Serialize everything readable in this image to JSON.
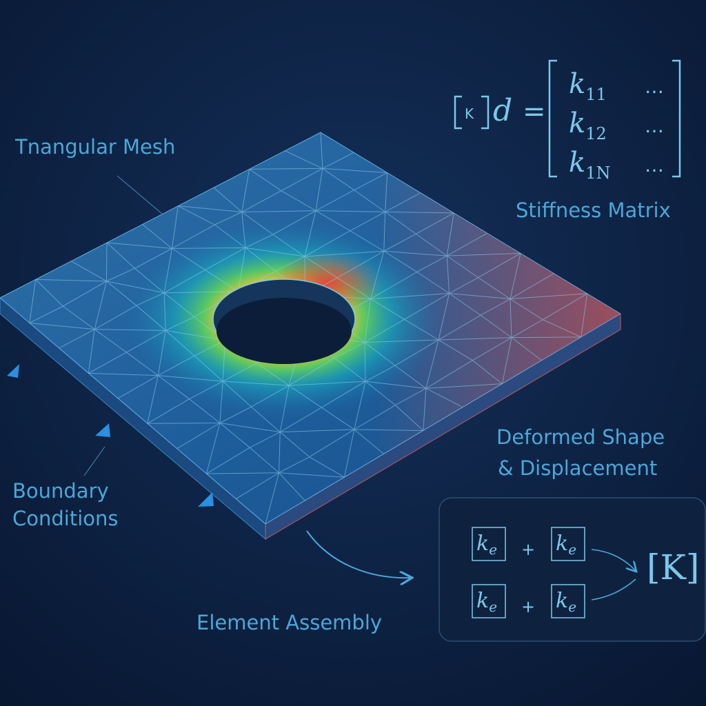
{
  "labels": {
    "mesh": "Tnangular Mesh",
    "stiffness": "Stiffness Matrix",
    "deformed": [
      "Deformed Shape",
      "& Displacement"
    ],
    "boundary": [
      "Boundary",
      "Conditions"
    ],
    "assembly": "Element Assembly"
  },
  "equation": {
    "matrix_symbol": "K",
    "vector": "d",
    "equals": "=",
    "rows": [
      {
        "base": "k",
        "sub": "11",
        "dots": "…"
      },
      {
        "base": "k",
        "sub": "12",
        "dots": "…"
      },
      {
        "base": "k",
        "sub": "1N",
        "dots": "…"
      }
    ]
  },
  "assembly": {
    "terms": [
      {
        "base": "k",
        "sub": "e"
      },
      {
        "base": "k",
        "sub": "e"
      },
      {
        "base": "k",
        "sub": "e"
      },
      {
        "base": "k",
        "sub": "e"
      }
    ],
    "plus": [
      "+",
      "+"
    ],
    "result": "[K]"
  }
}
